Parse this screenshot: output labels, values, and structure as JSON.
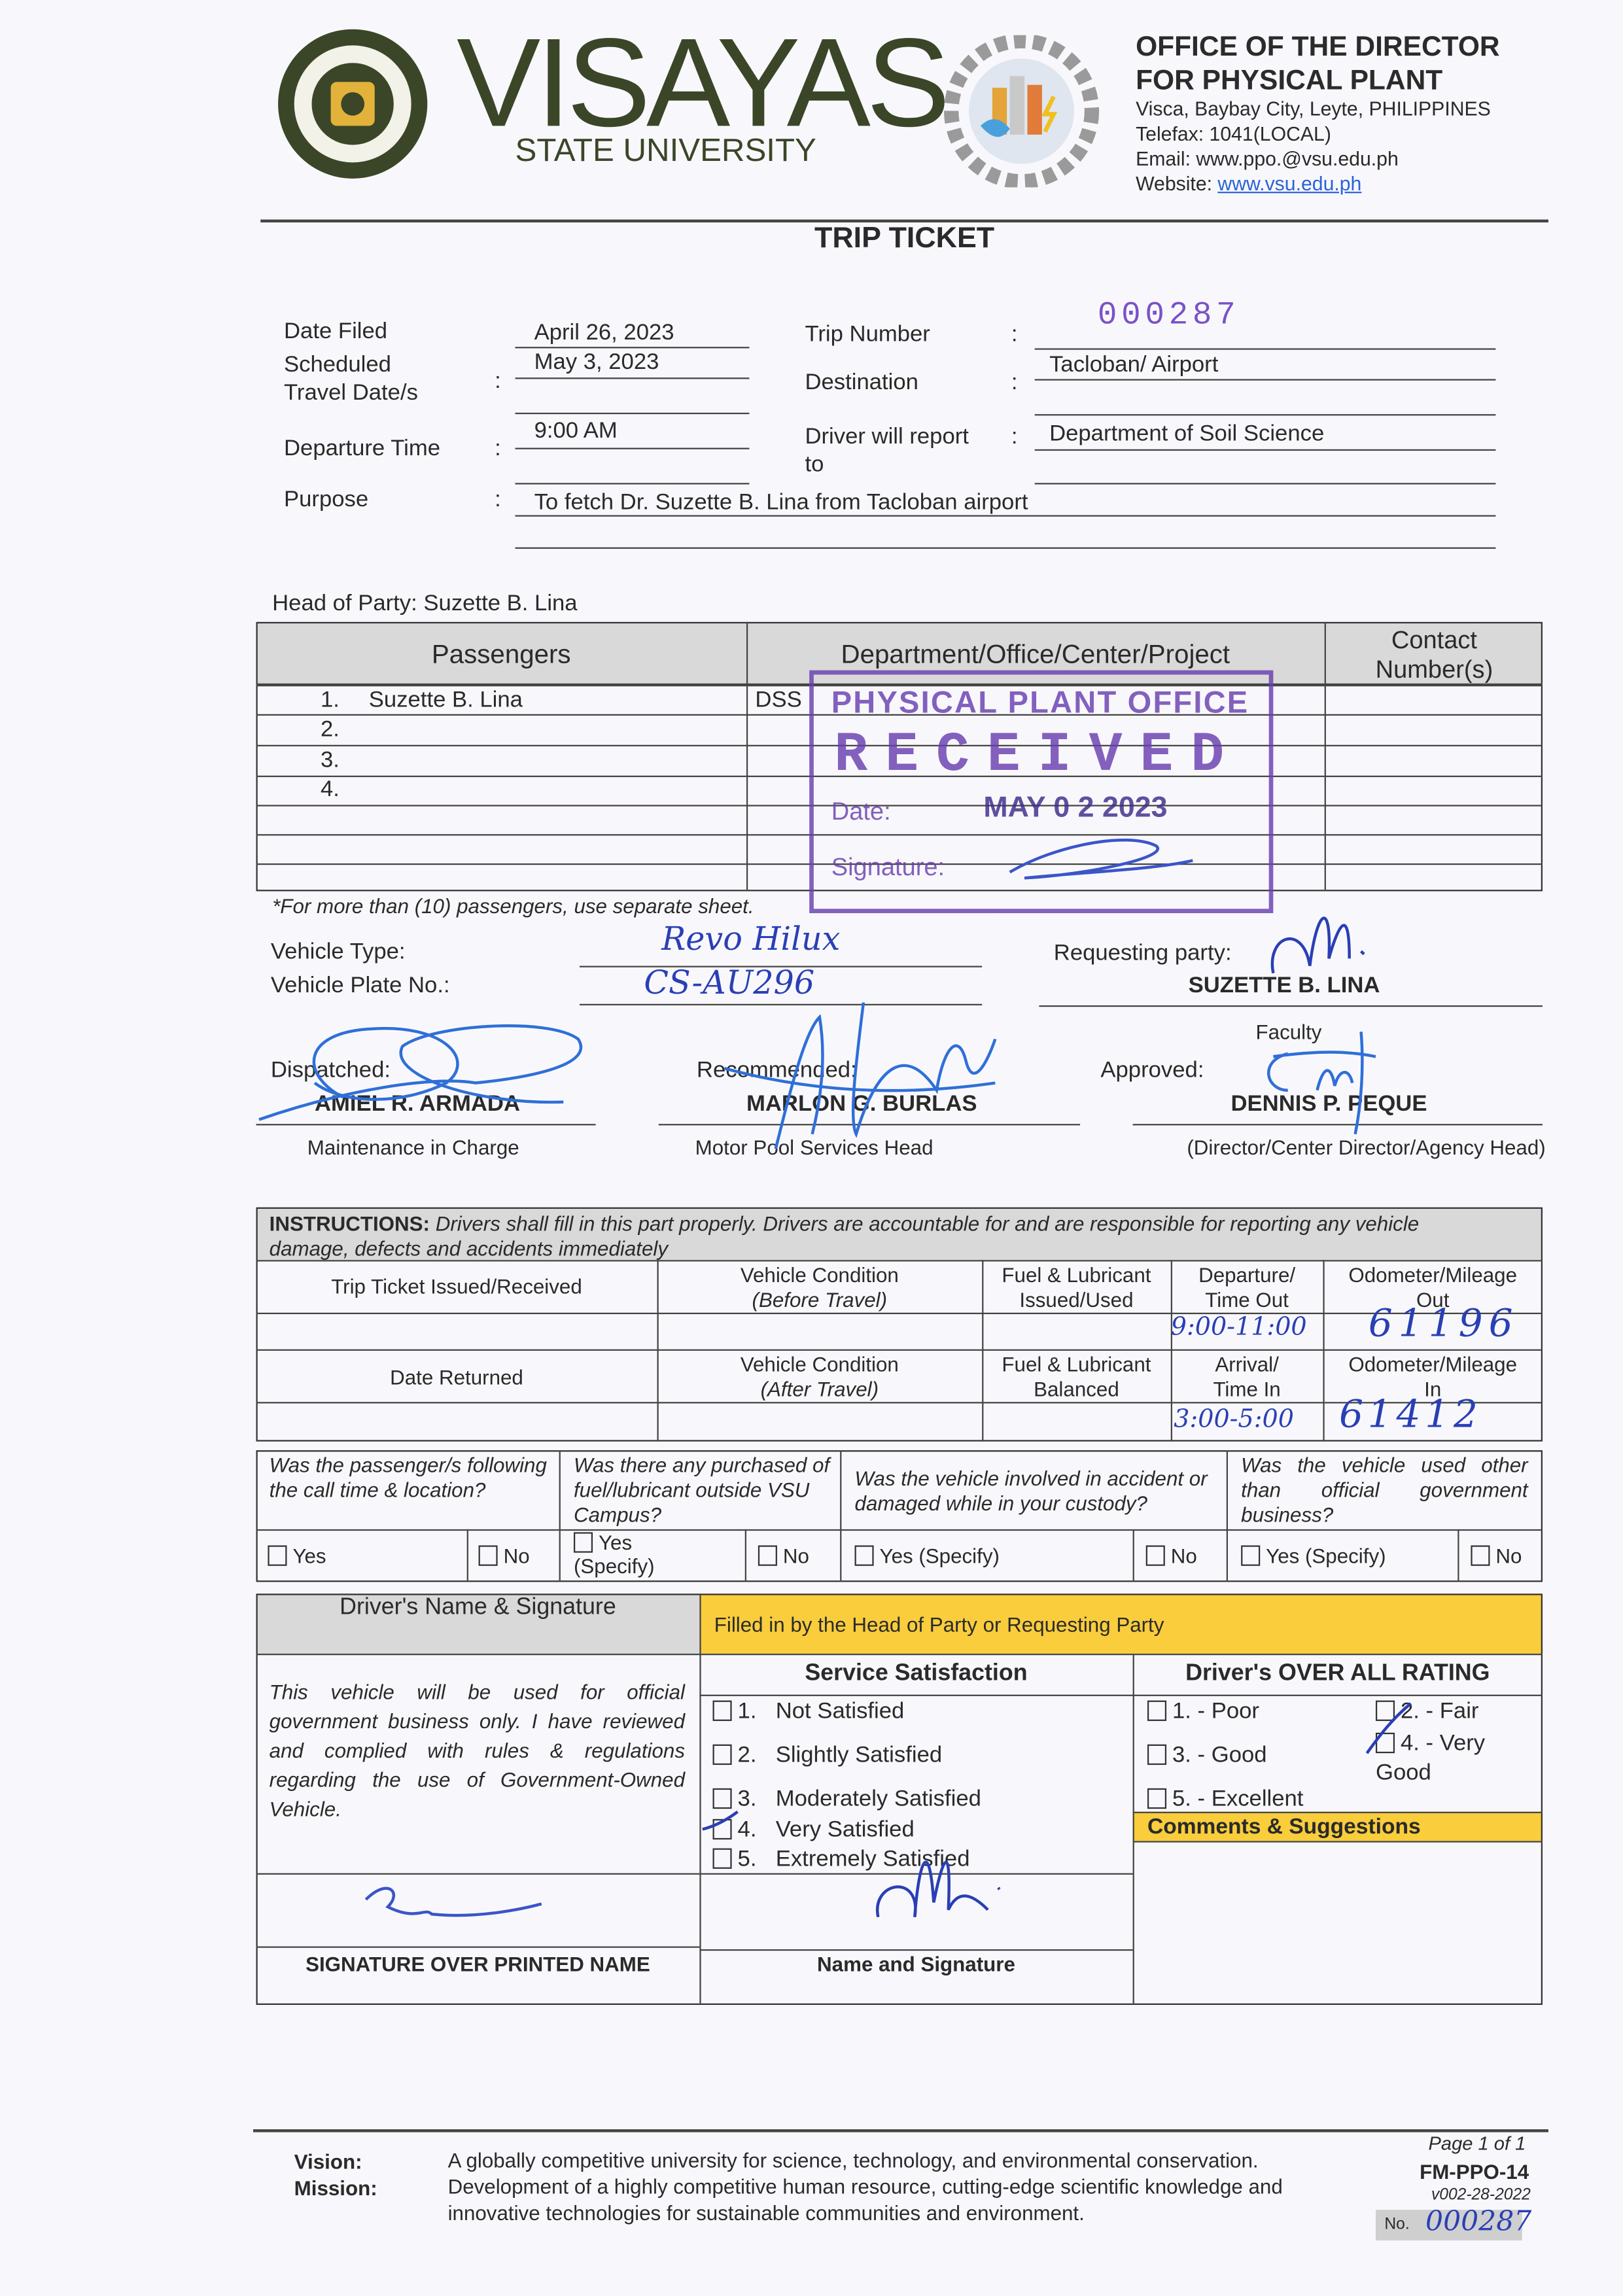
{
  "header": {
    "seal_text": "VISAYAS STATE UNIVERSITY",
    "university_name": "VISAYAS",
    "university_sub": "STATE UNIVERSITY",
    "gear_logo_text": "PHYSICAL PLANT OFFICE",
    "office_line1": "OFFICE OF THE DIRECTOR",
    "office_line2": "FOR PHYSICAL PLANT",
    "address": "Visca, Baybay City, Leyte, PHILIPPINES",
    "telefax": "Telefax: 1041(LOCAL)",
    "email": "Email: www.ppo.@vsu.edu.ph",
    "website_label": "Website: ",
    "website": "www.vsu.edu.ph",
    "colors": {
      "brand_text": "#3b4628",
      "link": "#2b63d6"
    }
  },
  "title": "TRIP TICKET",
  "fields": {
    "date_filed": {
      "label": "Date Filed",
      "value": "April 26, 2023"
    },
    "scheduled": {
      "label1": "Scheduled",
      "label2": "Travel Date/s",
      "value": "May 3, 2023"
    },
    "departure_time": {
      "label": "Departure Time",
      "value": "9:00 AM"
    },
    "purpose": {
      "label": "Purpose",
      "value": "To fetch Dr. Suzette B. Lina from Tacloban airport"
    },
    "trip_number": {
      "label": "Trip Number",
      "value": "000287"
    },
    "destination": {
      "label": "Destination",
      "value": "Tacloban/ Airport"
    },
    "driver_report": {
      "label1": "Driver will report",
      "label2": "to",
      "value": "Department of Soil Science"
    },
    "colon": ":"
  },
  "head_of_party": "Head of Party: Suzette B. Lina",
  "passengers": {
    "headers": [
      "Passengers",
      "Department/Office/Center/Project",
      "Contact Number(s)"
    ],
    "rows": [
      {
        "num": "1.",
        "name": "Suzette B. Lina",
        "dept": "DSS",
        "contact": ""
      },
      {
        "num": "2.",
        "name": "",
        "dept": "",
        "contact": ""
      },
      {
        "num": "3.",
        "name": "",
        "dept": "",
        "contact": ""
      },
      {
        "num": "4.",
        "name": "",
        "dept": "",
        "contact": ""
      }
    ],
    "note": "*For more than (10) passengers, use separate sheet."
  },
  "stamp": {
    "line1": "PHYSICAL PLANT OFFICE",
    "line2": "RECEIVED",
    "date_label": "Date:",
    "date": "MAY 0 2 2023",
    "sig_label": "Signature:",
    "color": "#6a3fb0"
  },
  "vehicle": {
    "type_label": "Vehicle Type:",
    "type_value": "Revo Hilux",
    "plate_label": "Vehicle Plate No.:",
    "plate_value": "CS-AU296"
  },
  "requesting": {
    "label": "Requesting party:",
    "name": "SUZETTE B. LINA",
    "position": "Faculty"
  },
  "dispatched": {
    "label": "Dispatched:",
    "name": "AMIEL R. ARMADA",
    "role": "Maintenance in Charge"
  },
  "recommended": {
    "label": "Recommended:",
    "name": "MARLON G. BURLAS",
    "role": "Motor Pool Services Head"
  },
  "approved": {
    "label": "Approved:",
    "name": "DENNIS P. PEQUE",
    "role": "(Director/Center Director/Agency Head)"
  },
  "instructions": {
    "label": "INSTRUCTIONS:",
    "text1": " Drivers shall fill in this part properly.  Drivers are accountable for and are responsible for reporting any vehicle",
    "text2": "damage, defects and accidents immediately"
  },
  "log": {
    "row1": [
      "Trip Ticket Issued/Received",
      "Vehicle Condition",
      "(Before Travel)",
      "Fuel & Lubricant",
      "Issued/Used",
      "Departure/",
      "Time Out",
      "Odometer/Mileage",
      "Out"
    ],
    "row2": [
      "Date Returned",
      "Vehicle Condition",
      "(After Travel)",
      "Fuel & Lubricant",
      "Balanced",
      "Arrival/",
      "Time In",
      "Odometer/Mileage",
      "In"
    ],
    "departure_time_out": "9:00-11:00",
    "odometer_out": "61196",
    "arrival_time_in": "3:00-5:00",
    "odometer_in": "61412"
  },
  "questions": [
    {
      "text": "Was the passenger/s following the call time & location?",
      "yes": "Yes",
      "no": "No"
    },
    {
      "text": "Was there any purchased of fuel/lubricant outside VSU Campus?",
      "yes": "Yes",
      "yes2": "(Specify)",
      "no": "No"
    },
    {
      "text": "Was the vehicle involved in accident or damaged while in your custody?",
      "yes": "Yes (Specify)",
      "no": "No"
    },
    {
      "text": "Was the vehicle used other than official government business?",
      "yes": "Yes (Specify)",
      "no": "No"
    }
  ],
  "driver_section": {
    "header": "Driver's Name & Signature",
    "statement": "This vehicle will be used for official government business only. I have reviewed and complied with rules & regulations regarding the use of Government-Owned Vehicle.",
    "sig_label": "SIGNATURE OVER PRINTED NAME"
  },
  "head_section": {
    "banner": "Filled in by the Head of Party or Requesting Party",
    "satisfaction_title": "Service Satisfaction",
    "satisfaction": [
      {
        "num": "1.",
        "label": "Not Satisfied",
        "checked": false
      },
      {
        "num": "2.",
        "label": "Slightly Satisfied",
        "checked": false
      },
      {
        "num": "3.",
        "label": "Moderately Satisfied",
        "checked": false
      },
      {
        "num": "4.",
        "label": "Very Satisfied",
        "checked": true
      },
      {
        "num": "5.",
        "label": "Extremely Satisfied",
        "checked": false
      }
    ],
    "sig_label": "Name and Signature",
    "rating_title": "Driver's OVER ALL RATING",
    "ratings": [
      {
        "label": "1. - Poor",
        "checked": false
      },
      {
        "label": "2. - Fair",
        "checked": false
      },
      {
        "label": "3. - Good",
        "checked": false
      },
      {
        "label": "4.  -  Very",
        "label2": "Good",
        "checked": true
      },
      {
        "label": "5. - Excellent",
        "checked": false
      }
    ],
    "comments_title": "Comments & Suggestions"
  },
  "footer": {
    "vision_label": "Vision:",
    "mission_label": "Mission:",
    "vision": "A globally competitive university for science, technology, and environmental conservation.",
    "mission1": "Development of a highly competitive human resource, cutting-edge scientific knowledge and",
    "mission2": "innovative technologies for sustainable communities and environment.",
    "page": "Page 1 of 1",
    "form_code": "FM-PPO-14",
    "version": "v002-28-2022",
    "no_label": "No.",
    "no_value": "000287"
  }
}
